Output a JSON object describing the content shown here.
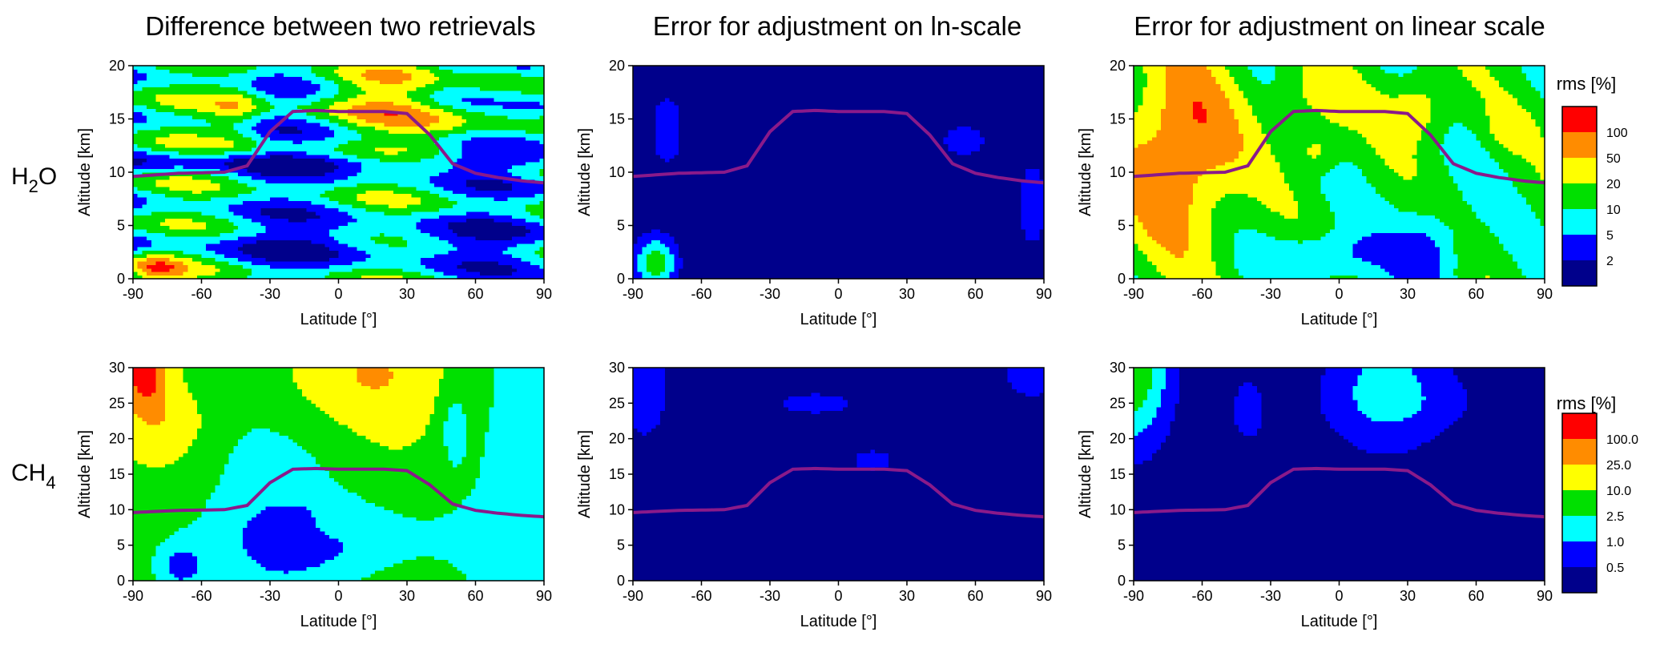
{
  "figure": {
    "column_titles": [
      "Difference between two retrievals",
      "Error for adjustment on ln-scale",
      "Error for adjustment on linear scale"
    ],
    "row_labels": [
      {
        "main": "H",
        "sub": "2",
        "tail": "O"
      },
      {
        "main": "CH",
        "sub": "4",
        "tail": ""
      }
    ]
  },
  "level_colors": [
    "#00008b",
    "#0000ff",
    "#00ffff",
    "#00e000",
    "#ffff00",
    "#ff8c00",
    "#ff0000"
  ],
  "tropopause_color": "#8a1a8a",
  "chart_data": [
    {
      "type": "contour",
      "row": 0,
      "col": 0,
      "xlabel": "Latitude [°]",
      "ylabel": "Altitude [km]",
      "xlim": [
        -90,
        90
      ],
      "ylim": [
        0,
        20
      ],
      "xticks": [
        -90,
        -60,
        -30,
        0,
        30,
        60,
        90
      ],
      "yticks": [
        0,
        5,
        10,
        15,
        20
      ],
      "description_levels": "rms %",
      "scheme": "h2o_diff"
    },
    {
      "type": "contour",
      "row": 0,
      "col": 1,
      "xlabel": "Latitude [°]",
      "ylabel": "Altitude [km]",
      "xlim": [
        -90,
        90
      ],
      "ylim": [
        0,
        20
      ],
      "xticks": [
        -90,
        -60,
        -30,
        0,
        30,
        60,
        90
      ],
      "yticks": [
        0,
        5,
        10,
        15,
        20
      ],
      "scheme": "h2o_ln"
    },
    {
      "type": "contour",
      "row": 0,
      "col": 2,
      "xlabel": "Latitude [°]",
      "ylabel": "Altitude [km]",
      "xlim": [
        -90,
        90
      ],
      "ylim": [
        0,
        20
      ],
      "xticks": [
        -90,
        -60,
        -30,
        0,
        30,
        60,
        90
      ],
      "yticks": [
        0,
        5,
        10,
        15,
        20
      ],
      "scheme": "h2o_lin"
    },
    {
      "type": "contour",
      "row": 1,
      "col": 0,
      "xlabel": "Latitude [°]",
      "ylabel": "Altitude [km]",
      "xlim": [
        -90,
        90
      ],
      "ylim": [
        0,
        30
      ],
      "xticks": [
        -90,
        -60,
        -30,
        0,
        30,
        60,
        90
      ],
      "yticks": [
        0,
        5,
        10,
        15,
        20,
        25,
        30
      ],
      "scheme": "ch4_diff"
    },
    {
      "type": "contour",
      "row": 1,
      "col": 1,
      "xlabel": "Latitude [°]",
      "ylabel": "Altitude [km]",
      "xlim": [
        -90,
        90
      ],
      "ylim": [
        0,
        30
      ],
      "xticks": [
        -90,
        -60,
        -30,
        0,
        30,
        60,
        90
      ],
      "yticks": [
        0,
        5,
        10,
        15,
        20,
        25,
        30
      ],
      "scheme": "ch4_ln"
    },
    {
      "type": "contour",
      "row": 1,
      "col": 2,
      "xlabel": "Latitude [°]",
      "ylabel": "Altitude [km]",
      "xlim": [
        -90,
        90
      ],
      "ylim": [
        0,
        30
      ],
      "xticks": [
        -90,
        -60,
        -30,
        0,
        30,
        60,
        90
      ],
      "yticks": [
        0,
        5,
        10,
        15,
        20,
        25,
        30
      ],
      "scheme": "ch4_lin"
    }
  ],
  "tropopause": {
    "lat": [
      -90,
      -70,
      -50,
      -40,
      -30,
      -20,
      -10,
      0,
      10,
      20,
      30,
      40,
      50,
      60,
      70,
      80,
      90
    ],
    "alt": [
      9.6,
      9.9,
      10.0,
      10.6,
      13.8,
      15.7,
      15.8,
      15.7,
      15.7,
      15.7,
      15.5,
      13.5,
      10.8,
      9.9,
      9.5,
      9.2,
      9.0
    ]
  },
  "colorbars": [
    {
      "title": "rms [%]",
      "labels": [
        "2",
        "5",
        "10",
        "20",
        "50",
        "100"
      ]
    },
    {
      "title": "rms [%]",
      "labels": [
        "0.5",
        "1.0",
        "2.5",
        "10.0",
        "25.0",
        "100.0"
      ]
    }
  ]
}
